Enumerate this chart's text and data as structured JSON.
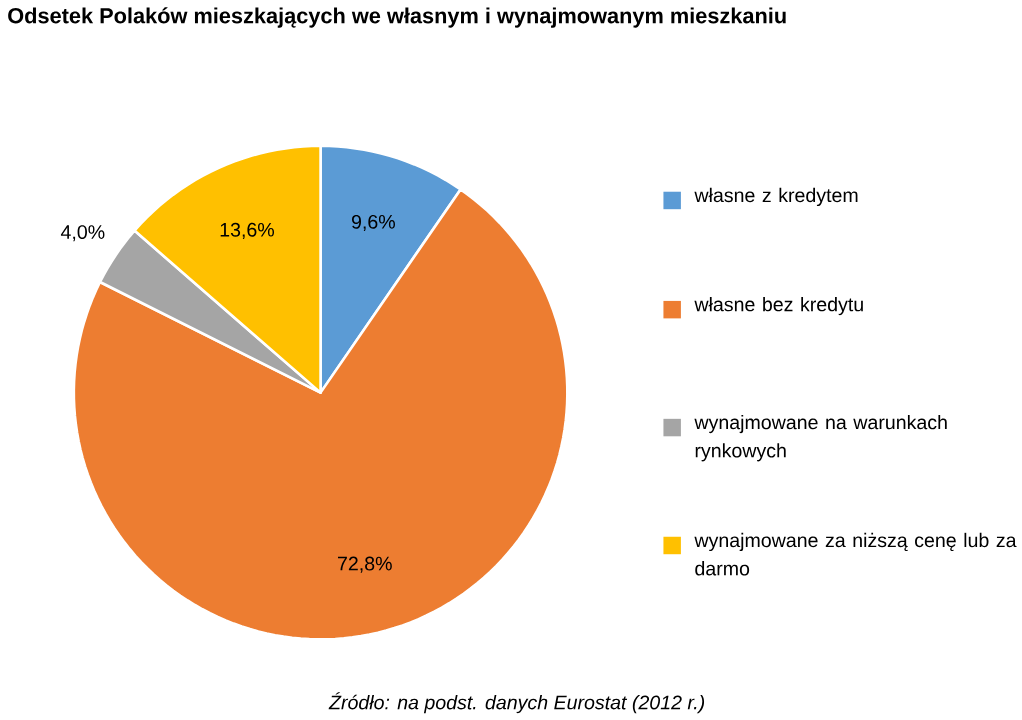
{
  "chart_data": {
    "type": "pie",
    "title": "Odsetek Polaków mieszkających we własnym i wynajmowanym mieszkaniu",
    "categories": [
      "własne z kredytem",
      "własne bez kredytu",
      "wynajmowane na warunkach rynkowych",
      "wynajmowane za niższą cenę lub za darmo"
    ],
    "values": [
      9.6,
      72.8,
      4.0,
      13.6
    ],
    "value_labels": [
      "9,6%",
      "72,8%",
      "4,0%",
      "13,6%"
    ],
    "colors": [
      "#5b9bd5",
      "#ed7d31",
      "#a5a5a5",
      "#ffc000"
    ],
    "legend": "right",
    "annotations": [
      "Źródło: na podst. danych Eurostat (2012 r.)"
    ]
  }
}
